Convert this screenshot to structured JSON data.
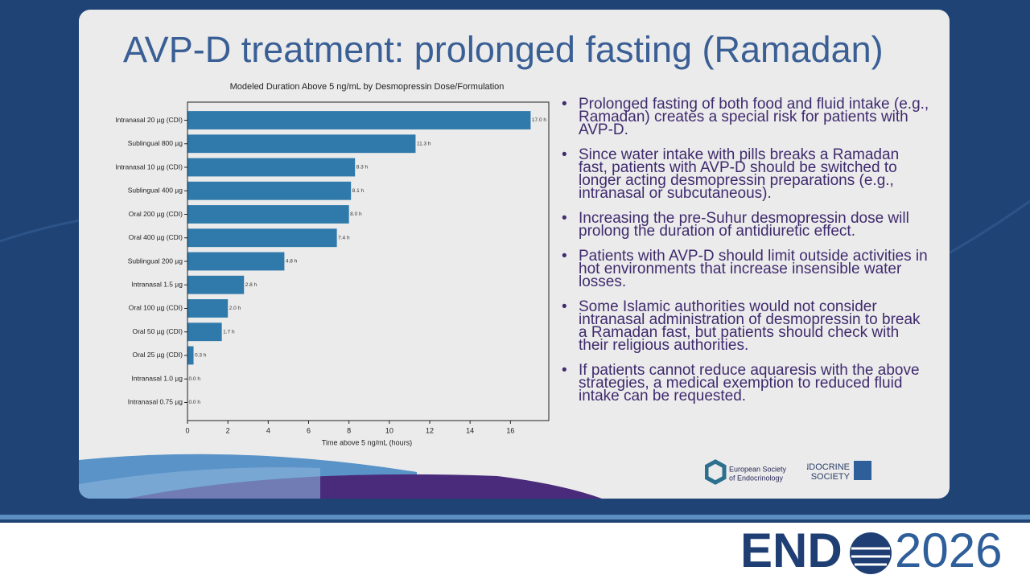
{
  "slide": {
    "title": "AVP-D treatment: prolonged fasting (Ramadan)",
    "bullets": [
      "Prolonged fasting of both food and fluid intake (e.g., Ramadan) creates a special risk for patients with AVP-D.",
      "Since water intake with pills breaks a Ramadan fast, patients with AVP-D should be switched to longer acting desmopressin preparations (e.g., intranasal or subcutaneous).",
      "Increasing the pre-Suhur desmopressin dose will prolong the duration of antidiuretic effect.",
      "Patients with AVP-D should limit outside activities in hot environments that increase insensible water losses.",
      "Some Islamic authorities would not consider intranasal administration of desmopressin to break a Ramadan fast, but patients should check with their religious authorities.",
      "If patients cannot reduce aquaresis with the above strategies, a medical exemption to reduced fluid intake can be requested."
    ],
    "logo_ese": [
      "European Society",
      "of Endocrinology"
    ],
    "logo_es": [
      "ENDOCRINE",
      "SOCIETY"
    ],
    "brand_left": "END",
    "brand_right": "2026"
  },
  "chart_data": {
    "type": "barh",
    "title": "Modeled Duration Above 5 ng/mL by Desmopressin Dose/Formulation",
    "x_label": "Time above 5 ng/mL (hours)",
    "categories": [
      "Intranasal 20 µg (CDI)",
      "Sublingual 800 µg",
      "Intranasal 10 µg (CDI)",
      "Sublingual 400 µg",
      "Oral 200 µg (CDI)",
      "Oral 400 µg (CDI)",
      "Sublingual 200 µg",
      "Intranasal 1.5 µg",
      "Oral 100 µg (CDI)",
      "Oral 50 µg (CDI)",
      "Oral 25 µg (CDI)",
      "Intranasal 1.0 µg",
      "Intranasal 0.75 µg"
    ],
    "values": [
      17.0,
      11.3,
      8.3,
      8.1,
      8.0,
      7.4,
      4.8,
      2.8,
      2.0,
      1.7,
      0.3,
      0.0,
      0.0
    ],
    "value_labels": [
      "17.0 h",
      "11.3 h",
      "8.3 h",
      "8.1 h",
      "8.0 h",
      "7.4 h",
      "4.8 h",
      "2.8 h",
      "2.0 h",
      "1.7 h",
      "0.3 h",
      "0.0 h",
      "0.0 h"
    ],
    "color": "#2f7aab",
    "xlim": [
      0,
      17.9
    ],
    "xticks": [
      0,
      2,
      4,
      6,
      8,
      10,
      12,
      14,
      16
    ]
  }
}
